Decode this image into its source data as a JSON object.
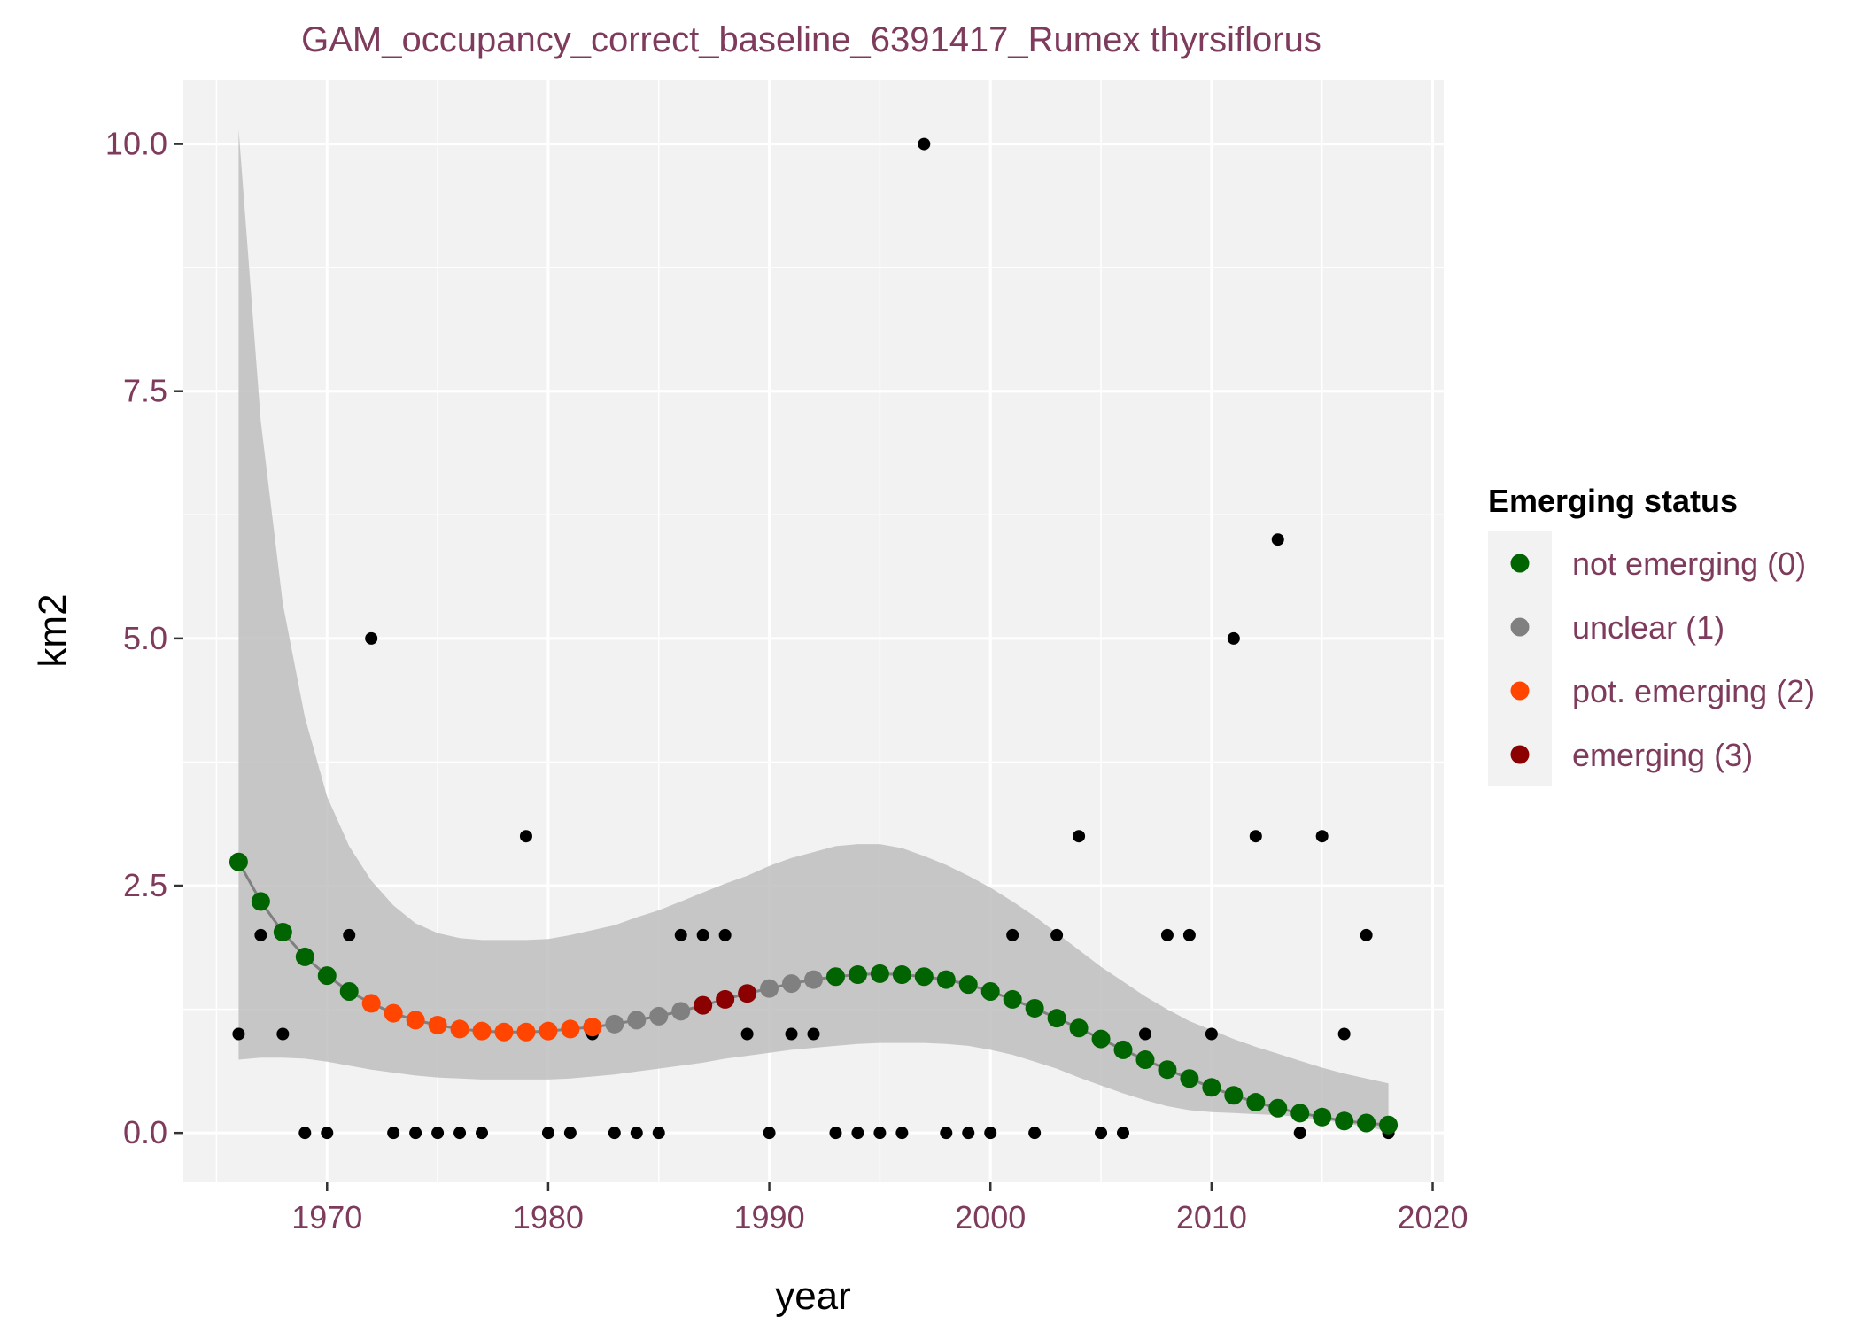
{
  "chart_data": {
    "type": "scatter",
    "title": "GAM_occupancy_correct_baseline_6391417_Rumex thyrsiflorus",
    "xlabel": "year",
    "ylabel": "km2",
    "xlim": [
      1963.5,
      2020.5
    ],
    "ylim": [
      -0.5,
      10.65
    ],
    "x_ticks": [
      1970,
      1980,
      1990,
      2000,
      2010,
      2020
    ],
    "y_ticks": [
      0.0,
      2.5,
      5.0,
      7.5,
      10.0
    ],
    "x_tick_labels": [
      "1970",
      "1980",
      "1990",
      "2000",
      "2010",
      "2020"
    ],
    "y_tick_labels": [
      "0.0",
      "2.5",
      "5.0",
      "7.5",
      "10.0"
    ],
    "grid": true,
    "background_color": "#f2f2f2",
    "legend": {
      "title": "Emerging status",
      "position": "right",
      "entries": [
        {
          "label": "not emerging (0)",
          "color": "#006400"
        },
        {
          "label": "unclear (1)",
          "color": "#808080"
        },
        {
          "label": "pot. emerging (2)",
          "color": "#ff4500"
        },
        {
          "label": "emerging (3)",
          "color": "#8b0000"
        }
      ]
    },
    "observations": {
      "color": "#000000",
      "points": [
        [
          1966,
          1
        ],
        [
          1967,
          2
        ],
        [
          1968,
          1
        ],
        [
          1969,
          0
        ],
        [
          1970,
          0
        ],
        [
          1971,
          2
        ],
        [
          1972,
          5
        ],
        [
          1973,
          0
        ],
        [
          1974,
          0
        ],
        [
          1975,
          0
        ],
        [
          1976,
          0
        ],
        [
          1977,
          0
        ],
        [
          1979,
          3
        ],
        [
          1980,
          0
        ],
        [
          1981,
          0
        ],
        [
          1982,
          1
        ],
        [
          1983,
          0
        ],
        [
          1984,
          0
        ],
        [
          1985,
          0
        ],
        [
          1986,
          2
        ],
        [
          1987,
          2
        ],
        [
          1988,
          2
        ],
        [
          1989,
          1
        ],
        [
          1990,
          0
        ],
        [
          1991,
          1
        ],
        [
          1992,
          1
        ],
        [
          1993,
          0
        ],
        [
          1994,
          0
        ],
        [
          1995,
          0
        ],
        [
          1996,
          0
        ],
        [
          1997,
          10
        ],
        [
          1998,
          0
        ],
        [
          1999,
          0
        ],
        [
          2000,
          0
        ],
        [
          2001,
          2
        ],
        [
          2002,
          0
        ],
        [
          2003,
          2
        ],
        [
          2004,
          3
        ],
        [
          2005,
          0
        ],
        [
          2006,
          0
        ],
        [
          2007,
          1
        ],
        [
          2008,
          2
        ],
        [
          2009,
          2
        ],
        [
          2010,
          1
        ],
        [
          2011,
          5
        ],
        [
          2012,
          3
        ],
        [
          2013,
          6
        ],
        [
          2014,
          0
        ],
        [
          2015,
          3
        ],
        [
          2016,
          1
        ],
        [
          2017,
          2
        ],
        [
          2018,
          0
        ]
      ]
    },
    "confidence_band": {
      "color": "#bebebe",
      "x": [
        1966,
        1967,
        1968,
        1969,
        1970,
        1971,
        1972,
        1973,
        1974,
        1975,
        1976,
        1977,
        1978,
        1979,
        1980,
        1981,
        1982,
        1983,
        1984,
        1985,
        1986,
        1987,
        1988,
        1989,
        1990,
        1991,
        1992,
        1993,
        1994,
        1995,
        1996,
        1997,
        1998,
        1999,
        2000,
        2001,
        2002,
        2003,
        2004,
        2005,
        2006,
        2007,
        2008,
        2009,
        2010,
        2011,
        2012,
        2013,
        2014,
        2015,
        2016,
        2017,
        2018
      ],
      "lower": [
        0.74,
        0.76,
        0.76,
        0.75,
        0.72,
        0.68,
        0.64,
        0.61,
        0.58,
        0.56,
        0.55,
        0.54,
        0.54,
        0.54,
        0.54,
        0.55,
        0.57,
        0.59,
        0.62,
        0.65,
        0.68,
        0.71,
        0.75,
        0.78,
        0.81,
        0.84,
        0.86,
        0.88,
        0.9,
        0.91,
        0.91,
        0.91,
        0.9,
        0.88,
        0.84,
        0.79,
        0.72,
        0.65,
        0.56,
        0.48,
        0.4,
        0.33,
        0.27,
        0.23,
        0.21,
        0.2,
        0.19,
        0.18,
        0.16,
        0.13,
        0.1,
        0.06,
        0.02
      ],
      "upper": [
        10.15,
        7.2,
        5.35,
        4.2,
        3.4,
        2.9,
        2.55,
        2.3,
        2.12,
        2.02,
        1.97,
        1.95,
        1.95,
        1.95,
        1.96,
        2.0,
        2.05,
        2.1,
        2.18,
        2.25,
        2.34,
        2.43,
        2.52,
        2.6,
        2.7,
        2.78,
        2.84,
        2.9,
        2.92,
        2.92,
        2.88,
        2.8,
        2.71,
        2.6,
        2.48,
        2.34,
        2.19,
        2.02,
        1.85,
        1.68,
        1.53,
        1.38,
        1.25,
        1.13,
        1.04,
        0.95,
        0.87,
        0.8,
        0.73,
        0.66,
        0.6,
        0.55,
        0.5
      ]
    },
    "fit_line_color": "#808080",
    "fitted": [
      {
        "x": 1966,
        "y": 2.74,
        "status": 0
      },
      {
        "x": 1967,
        "y": 2.34,
        "status": 0
      },
      {
        "x": 1968,
        "y": 2.03,
        "status": 0
      },
      {
        "x": 1969,
        "y": 1.78,
        "status": 0
      },
      {
        "x": 1970,
        "y": 1.59,
        "status": 0
      },
      {
        "x": 1971,
        "y": 1.43,
        "status": 0
      },
      {
        "x": 1972,
        "y": 1.31,
        "status": 2
      },
      {
        "x": 1973,
        "y": 1.21,
        "status": 2
      },
      {
        "x": 1974,
        "y": 1.14,
        "status": 2
      },
      {
        "x": 1975,
        "y": 1.09,
        "status": 2
      },
      {
        "x": 1976,
        "y": 1.05,
        "status": 2
      },
      {
        "x": 1977,
        "y": 1.03,
        "status": 2
      },
      {
        "x": 1978,
        "y": 1.02,
        "status": 2
      },
      {
        "x": 1979,
        "y": 1.02,
        "status": 2
      },
      {
        "x": 1980,
        "y": 1.03,
        "status": 2
      },
      {
        "x": 1981,
        "y": 1.05,
        "status": 2
      },
      {
        "x": 1982,
        "y": 1.07,
        "status": 2
      },
      {
        "x": 1983,
        "y": 1.1,
        "status": 1
      },
      {
        "x": 1984,
        "y": 1.14,
        "status": 1
      },
      {
        "x": 1985,
        "y": 1.18,
        "status": 1
      },
      {
        "x": 1986,
        "y": 1.23,
        "status": 1
      },
      {
        "x": 1987,
        "y": 1.29,
        "status": 3
      },
      {
        "x": 1988,
        "y": 1.35,
        "status": 3
      },
      {
        "x": 1989,
        "y": 1.41,
        "status": 3
      },
      {
        "x": 1990,
        "y": 1.46,
        "status": 1
      },
      {
        "x": 1991,
        "y": 1.51,
        "status": 1
      },
      {
        "x": 1992,
        "y": 1.55,
        "status": 1
      },
      {
        "x": 1993,
        "y": 1.58,
        "status": 0
      },
      {
        "x": 1994,
        "y": 1.6,
        "status": 0
      },
      {
        "x": 1995,
        "y": 1.61,
        "status": 0
      },
      {
        "x": 1996,
        "y": 1.6,
        "status": 0
      },
      {
        "x": 1997,
        "y": 1.58,
        "status": 0
      },
      {
        "x": 1998,
        "y": 1.55,
        "status": 0
      },
      {
        "x": 1999,
        "y": 1.5,
        "status": 0
      },
      {
        "x": 2000,
        "y": 1.43,
        "status": 0
      },
      {
        "x": 2001,
        "y": 1.35,
        "status": 0
      },
      {
        "x": 2002,
        "y": 1.26,
        "status": 0
      },
      {
        "x": 2003,
        "y": 1.16,
        "status": 0
      },
      {
        "x": 2004,
        "y": 1.06,
        "status": 0
      },
      {
        "x": 2005,
        "y": 0.95,
        "status": 0
      },
      {
        "x": 2006,
        "y": 0.84,
        "status": 0
      },
      {
        "x": 2007,
        "y": 0.74,
        "status": 0
      },
      {
        "x": 2008,
        "y": 0.64,
        "status": 0
      },
      {
        "x": 2009,
        "y": 0.55,
        "status": 0
      },
      {
        "x": 2010,
        "y": 0.46,
        "status": 0
      },
      {
        "x": 2011,
        "y": 0.38,
        "status": 0
      },
      {
        "x": 2012,
        "y": 0.31,
        "status": 0
      },
      {
        "x": 2013,
        "y": 0.25,
        "status": 0
      },
      {
        "x": 2014,
        "y": 0.2,
        "status": 0
      },
      {
        "x": 2015,
        "y": 0.16,
        "status": 0
      },
      {
        "x": 2016,
        "y": 0.12,
        "status": 0
      },
      {
        "x": 2017,
        "y": 0.1,
        "status": 0
      },
      {
        "x": 2018,
        "y": 0.08,
        "status": 0
      }
    ]
  }
}
